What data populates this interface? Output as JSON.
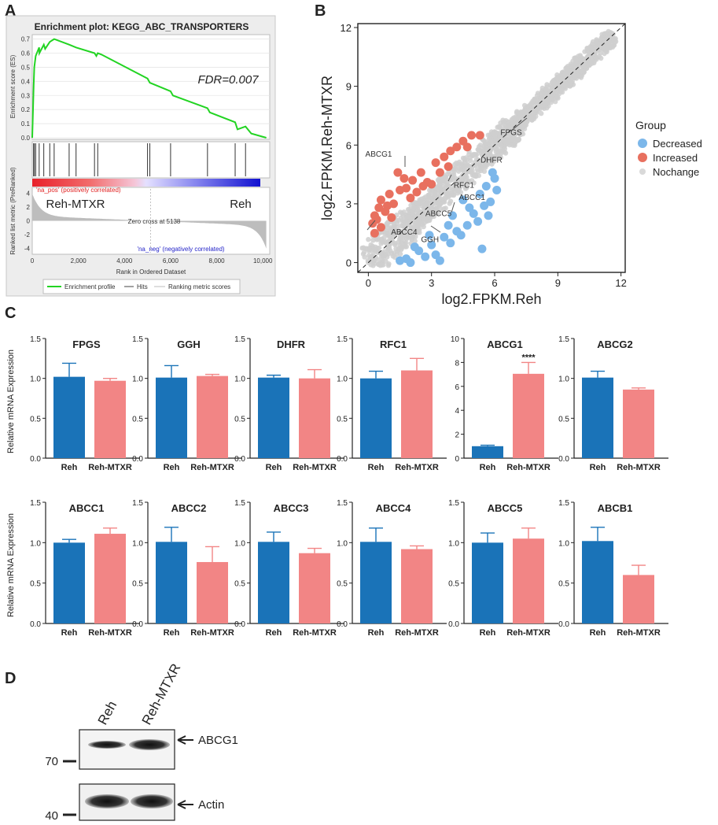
{
  "panels": {
    "A": "A",
    "B": "B",
    "C": "C",
    "D": "D"
  },
  "chart_data": [
    {
      "id": "gsea",
      "type": "line",
      "title": "Enrichment plot: KEGG_ABC_TRANSPORTERS",
      "ylabel_top": "Enrichment score (ES)",
      "ylabel_bottom": "Ranked list metric (PreRanked)",
      "xlabel": "Rank in Ordered Dataset",
      "annotation": "FDR=0.007",
      "pos_label": "'na_pos' (positively correlated)",
      "neg_label": "'na_neg' (negatively correlated)",
      "zero_cross": "Zero cross at 5138",
      "group_left": "Reh-MTXR",
      "group_right": "Reh",
      "x_ticks": [
        "0",
        "2,000",
        "4,000",
        "6,000",
        "8,000",
        "10,000"
      ],
      "x_tick_values": [
        0,
        2000,
        4000,
        6000,
        8000,
        10000
      ],
      "xlim": [
        0,
        10300
      ],
      "es_ticks": [
        "0.7",
        "0.6",
        "0.5",
        "0.4",
        "0.3",
        "0.2",
        "0.1",
        "0.0"
      ],
      "es_tick_values": [
        0.7,
        0.6,
        0.5,
        0.4,
        0.3,
        0.2,
        0.1,
        0.0
      ],
      "es_ylim": [
        0.0,
        0.72
      ],
      "metric_ticks": [
        "4",
        "2",
        "0",
        "-2",
        "-4"
      ],
      "metric_tick_values": [
        4,
        2,
        0,
        -2,
        -4
      ],
      "metric_ylim": [
        -4.6,
        4.6
      ],
      "es_curve": [
        [
          0,
          0.0
        ],
        [
          60,
          0.37
        ],
        [
          90,
          0.5
        ],
        [
          150,
          0.58
        ],
        [
          300,
          0.64
        ],
        [
          310,
          0.6
        ],
        [
          500,
          0.66
        ],
        [
          560,
          0.63
        ],
        [
          760,
          0.68
        ],
        [
          950,
          0.7
        ],
        [
          1600,
          0.66
        ],
        [
          1900,
          0.64
        ],
        [
          2700,
          0.6
        ],
        [
          2780,
          0.58
        ],
        [
          2840,
          0.6
        ],
        [
          3000,
          0.59
        ],
        [
          5000,
          0.42
        ],
        [
          5100,
          0.39
        ],
        [
          6000,
          0.33
        ],
        [
          6100,
          0.3
        ],
        [
          7600,
          0.21
        ],
        [
          7700,
          0.18
        ],
        [
          8800,
          0.11
        ],
        [
          8900,
          0.06
        ],
        [
          9250,
          0.08
        ],
        [
          9500,
          0.03
        ],
        [
          10150,
          0.0
        ]
      ],
      "hits": [
        60,
        90,
        150,
        300,
        500,
        760,
        950,
        1600,
        1900,
        2700,
        2840,
        5000,
        5100,
        6000,
        7600,
        8800,
        9250
      ],
      "legend": [
        "Enrichment profile",
        "Hits",
        "Ranking metric scores"
      ]
    },
    {
      "id": "scatter",
      "type": "scatter",
      "xlabel": "log2.FPKM.Reh",
      "ylabel": "log2.FPKM.Reh-MTXR",
      "xlim": [
        -0.5,
        12.2
      ],
      "ylim": [
        -0.5,
        12.2
      ],
      "ticks": [
        "0",
        "3",
        "6",
        "9",
        "12"
      ],
      "tick_values": [
        0,
        3,
        6,
        9,
        12
      ],
      "legend_title": "Group",
      "groups": [
        {
          "name": "Decreased",
          "color": "#7cb7ea"
        },
        {
          "name": "Increased",
          "color": "#e8705f"
        },
        {
          "name": "Nochange",
          "color": "#d9d9d9"
        }
      ],
      "increased": [
        [
          0.2,
          2.0
        ],
        [
          0.3,
          2.4
        ],
        [
          0.5,
          2.8
        ],
        [
          0.8,
          2.6
        ],
        [
          1.2,
          3.0
        ],
        [
          0.6,
          3.2
        ],
        [
          1.0,
          3.5
        ],
        [
          1.5,
          3.7
        ],
        [
          0.4,
          2.2
        ],
        [
          1.8,
          3.8
        ],
        [
          2.1,
          4.2
        ],
        [
          1.7,
          4.3
        ],
        [
          2.5,
          4.6
        ],
        [
          2.8,
          4.1
        ],
        [
          3.4,
          4.6
        ],
        [
          3.2,
          5.1
        ],
        [
          3.6,
          5.4
        ],
        [
          3.9,
          5.7
        ],
        [
          4.5,
          6.2
        ],
        [
          4.2,
          5.9
        ],
        [
          4.9,
          6.5
        ],
        [
          1.4,
          4.6
        ],
        [
          2.0,
          3.3
        ],
        [
          0.9,
          2.9
        ],
        [
          1.1,
          2.3
        ],
        [
          0.3,
          1.5
        ],
        [
          0.6,
          1.8
        ],
        [
          2.3,
          3.6
        ],
        [
          3.0,
          4.0
        ],
        [
          3.8,
          4.9
        ],
        [
          4.7,
          5.9
        ],
        [
          5.3,
          6.5
        ],
        [
          2.6,
          3.9
        ]
      ],
      "decreased": [
        [
          1.8,
          0.2
        ],
        [
          2.0,
          0.0
        ],
        [
          2.4,
          0.6
        ],
        [
          2.7,
          0.3
        ],
        [
          3.0,
          0.9
        ],
        [
          3.2,
          0.4
        ],
        [
          3.6,
          1.3
        ],
        [
          3.9,
          1.0
        ],
        [
          4.2,
          1.6
        ],
        [
          4.4,
          1.4
        ],
        [
          4.7,
          1.9
        ],
        [
          5.0,
          2.5
        ],
        [
          5.2,
          2.1
        ],
        [
          5.5,
          2.9
        ],
        [
          5.3,
          3.5
        ],
        [
          5.8,
          3.1
        ],
        [
          5.6,
          3.9
        ],
        [
          6.0,
          4.3
        ],
        [
          6.1,
          3.7
        ],
        [
          5.9,
          4.6
        ],
        [
          3.4,
          0.1
        ],
        [
          2.9,
          1.4
        ],
        [
          4.8,
          2.8
        ],
        [
          5.4,
          0.7
        ],
        [
          4.0,
          2.4
        ],
        [
          2.2,
          0.8
        ],
        [
          1.5,
          0.1
        ],
        [
          5.7,
          2.4
        ],
        [
          3.8,
          1.9
        ],
        [
          4.5,
          3.2
        ]
      ],
      "annotations": [
        {
          "label": "FPGS",
          "x": 6.5,
          "y": 6.2
        },
        {
          "label": "DHFR",
          "x": 5.4,
          "y": 5.1
        },
        {
          "label": "ABCG1",
          "x": 1.5,
          "y": 4.6
        },
        {
          "label": "RFC1",
          "x": 4.2,
          "y": 3.9
        },
        {
          "label": "ABCC1",
          "x": 4.6,
          "y": 3.2
        },
        {
          "label": "ABCC5",
          "x": 4.2,
          "y": 2.7
        },
        {
          "label": "ABCC4",
          "x": 1.6,
          "y": 2.0
        },
        {
          "label": "GGH",
          "x": 2.8,
          "y": 1.6
        }
      ]
    },
    {
      "id": "qpcr",
      "type": "bar",
      "ylabel": "Relative mRNA Expression",
      "categories": [
        "Reh",
        "Reh-MTXR"
      ],
      "colors": [
        "#1a73b8",
        "#f28585"
      ],
      "genes": [
        {
          "name": "FPGS",
          "values": [
            1.02,
            0.97
          ],
          "errors": [
            0.17,
            0.03
          ],
          "ylim": [
            0,
            1.5
          ],
          "ticks": [
            "0.0",
            "0.5",
            "1.0",
            "1.5"
          ],
          "sig": ""
        },
        {
          "name": "GGH",
          "values": [
            1.01,
            1.03
          ],
          "errors": [
            0.15,
            0.02
          ],
          "ylim": [
            0,
            1.5
          ],
          "ticks": [
            "0.0",
            "0.5",
            "1.0",
            "1.5"
          ],
          "sig": ""
        },
        {
          "name": "DHFR",
          "values": [
            1.01,
            1.0
          ],
          "errors": [
            0.03,
            0.11
          ],
          "ylim": [
            0,
            1.5
          ],
          "ticks": [
            "0.0",
            "0.5",
            "1.0",
            "1.5"
          ],
          "sig": ""
        },
        {
          "name": "RFC1",
          "values": [
            1.0,
            1.1
          ],
          "errors": [
            0.09,
            0.15
          ],
          "ylim": [
            0,
            1.5
          ],
          "ticks": [
            "0.0",
            "0.5",
            "1.0",
            "1.5"
          ],
          "sig": ""
        },
        {
          "name": "ABCG1",
          "values": [
            1.0,
            7.05
          ],
          "errors": [
            0.08,
            0.95
          ],
          "ylim": [
            0,
            10
          ],
          "ticks": [
            "0",
            "2",
            "4",
            "6",
            "8",
            "10"
          ],
          "sig": "****"
        },
        {
          "name": "ABCG2",
          "values": [
            1.01,
            0.86
          ],
          "errors": [
            0.08,
            0.02
          ],
          "ylim": [
            0,
            1.5
          ],
          "ticks": [
            "0.0",
            "0.5",
            "1.0",
            "1.5"
          ],
          "sig": ""
        },
        {
          "name": "ABCC1",
          "values": [
            1.0,
            1.11
          ],
          "errors": [
            0.04,
            0.07
          ],
          "ylim": [
            0,
            1.5
          ],
          "ticks": [
            "0.0",
            "0.5",
            "1.0",
            "1.5"
          ],
          "sig": ""
        },
        {
          "name": "ABCC2",
          "values": [
            1.01,
            0.76
          ],
          "errors": [
            0.18,
            0.19
          ],
          "ylim": [
            0,
            1.5
          ],
          "ticks": [
            "0.0",
            "0.5",
            "1.0",
            "1.5"
          ],
          "sig": ""
        },
        {
          "name": "ABCC3",
          "values": [
            1.01,
            0.87
          ],
          "errors": [
            0.12,
            0.06
          ],
          "ylim": [
            0,
            1.5
          ],
          "ticks": [
            "0.0",
            "0.5",
            "1.0",
            "1.5"
          ],
          "sig": ""
        },
        {
          "name": "ABCC4",
          "values": [
            1.01,
            0.92
          ],
          "errors": [
            0.17,
            0.04
          ],
          "ylim": [
            0,
            1.5
          ],
          "ticks": [
            "0.0",
            "0.5",
            "1.0",
            "1.5"
          ],
          "sig": ""
        },
        {
          "name": "ABCC5",
          "values": [
            1.0,
            1.05
          ],
          "errors": [
            0.12,
            0.13
          ],
          "ylim": [
            0,
            1.5
          ],
          "ticks": [
            "0.0",
            "0.5",
            "1.0",
            "1.5"
          ],
          "sig": ""
        },
        {
          "name": "ABCB1",
          "values": [
            1.02,
            0.6
          ],
          "errors": [
            0.17,
            0.12
          ],
          "ylim": [
            0,
            1.5
          ],
          "ticks": [
            "0.0",
            "0.5",
            "1.0",
            "1.5"
          ],
          "sig": ""
        }
      ]
    }
  ],
  "western": {
    "lanes": [
      "Reh",
      "Reh-MTXR"
    ],
    "markers": [
      "70",
      "40"
    ],
    "proteins": [
      "ABCG1",
      "Actin"
    ]
  }
}
